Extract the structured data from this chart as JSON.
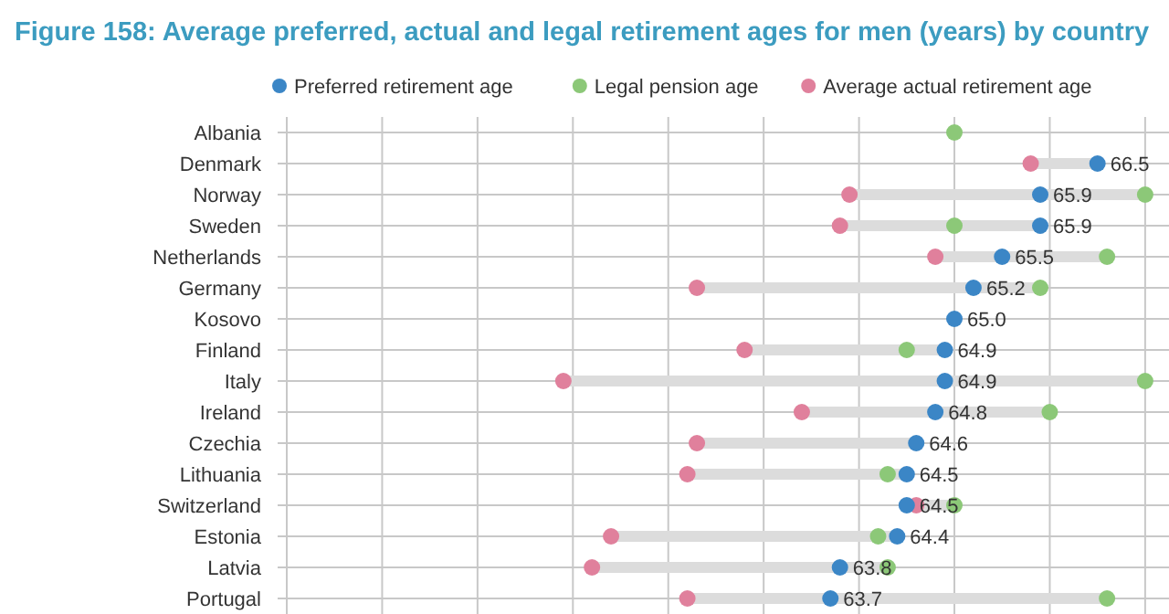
{
  "chart_data": {
    "type": "scatter",
    "title": "Figure 158: Average preferred, actual and legal retirement ages for men (years) by country",
    "categories": [
      "Albania",
      "Denmark",
      "Norway",
      "Sweden",
      "Netherlands",
      "Germany",
      "Kosovo",
      "Finland",
      "Italy",
      "Ireland",
      "Czechia",
      "Lithuania",
      "Switzerland",
      "Estonia",
      "Latvia",
      "Portugal"
    ],
    "orientation": "horizontal",
    "xlim": [
      58,
      67.25
    ],
    "xticks": [
      {
        "value": 58,
        "label": null
      },
      {
        "value": 59,
        "label": null
      },
      {
        "value": 60,
        "label": null
      },
      {
        "value": 61,
        "label": null
      },
      {
        "value": 62,
        "label": null
      },
      {
        "value": 63,
        "label": null
      },
      {
        "value": 64,
        "label": null
      },
      {
        "value": 65,
        "label": null
      },
      {
        "value": 66,
        "label": null
      },
      {
        "value": 67,
        "label": null
      }
    ],
    "tick_labels": "y",
    "grid": true,
    "legend": "top",
    "marker": "circle",
    "series": [
      {
        "name": "Preferred retirement age",
        "color": "#3b86c6",
        "values": [
          null,
          66.5,
          65.9,
          65.9,
          65.5,
          65.2,
          65.0,
          64.9,
          64.9,
          64.8,
          64.6,
          64.5,
          64.5,
          64.4,
          63.8,
          63.7
        ],
        "value_labels": [
          null,
          "66.5",
          "65.9",
          "65.9",
          "65.5",
          "65.2",
          "65.0",
          "64.9",
          "64.9",
          "64.8",
          "64.6",
          "64.5",
          "64.5",
          "64.4",
          "63.8",
          "63.7"
        ]
      },
      {
        "name": "Legal pension age",
        "color": "#8cc878",
        "values": [
          65.0,
          null,
          67.0,
          65.0,
          66.6,
          65.9,
          null,
          64.5,
          67.0,
          66.0,
          null,
          64.3,
          65.0,
          64.2,
          64.3,
          66.6
        ]
      },
      {
        "name": "Average actual retirement age",
        "color": "#e0809c",
        "values": [
          null,
          65.8,
          63.9,
          63.8,
          64.8,
          62.3,
          null,
          62.8,
          60.9,
          63.4,
          62.3,
          62.2,
          64.6,
          61.4,
          61.2,
          62.2
        ]
      }
    ]
  }
}
